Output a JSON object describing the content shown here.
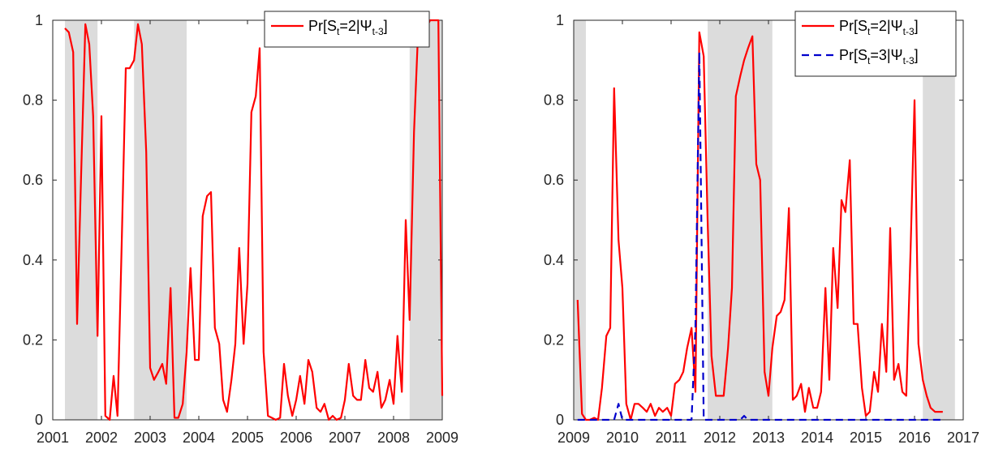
{
  "chart_data": [
    {
      "type": "line",
      "xlim": [
        2001.0,
        2009.0
      ],
      "ylim": [
        0,
        1
      ],
      "xticks": [
        "2001",
        "2002",
        "2003",
        "2004",
        "2005",
        "2006",
        "2007",
        "2008",
        "2009"
      ],
      "yticks": [
        "0",
        "0.2",
        "0.4",
        "0.6",
        "0.8",
        "1"
      ],
      "grid": false,
      "legend_position": "top-right",
      "shaded_periods": [
        [
          2001.25,
          2001.92
        ],
        [
          2002.67,
          2003.75
        ],
        [
          2008.33,
          2009.0
        ]
      ],
      "series": [
        {
          "name": "Pr[S_t=2|Ψ_t-3]",
          "legend": {
            "main": "Pr[S",
            "sub1": "t",
            "mid": "=2|Ψ",
            "sub2": "t-3",
            "end": "]"
          },
          "color": "#ff0000",
          "dash": "solid",
          "x": [
            2001.25,
            2001.33,
            2001.42,
            2001.5,
            2001.58,
            2001.67,
            2001.75,
            2001.83,
            2001.92,
            2002.0,
            2002.08,
            2002.17,
            2002.25,
            2002.33,
            2002.42,
            2002.5,
            2002.58,
            2002.67,
            2002.75,
            2002.83,
            2002.92,
            2003.0,
            2003.08,
            2003.17,
            2003.25,
            2003.33,
            2003.42,
            2003.5,
            2003.58,
            2003.67,
            2003.75,
            2003.83,
            2003.92,
            2004.0,
            2004.08,
            2004.17,
            2004.25,
            2004.33,
            2004.42,
            2004.5,
            2004.58,
            2004.67,
            2004.75,
            2004.83,
            2004.92,
            2005.0,
            2005.08,
            2005.17,
            2005.25,
            2005.33,
            2005.42,
            2005.5,
            2005.58,
            2005.67,
            2005.75,
            2005.83,
            2005.92,
            2006.0,
            2006.08,
            2006.17,
            2006.25,
            2006.33,
            2006.42,
            2006.5,
            2006.58,
            2006.67,
            2006.75,
            2006.83,
            2006.92,
            2007.0,
            2007.08,
            2007.17,
            2007.25,
            2007.33,
            2007.42,
            2007.5,
            2007.58,
            2007.67,
            2007.75,
            2007.83,
            2007.92,
            2008.0,
            2008.08,
            2008.17,
            2008.25,
            2008.33,
            2008.42,
            2008.5,
            2008.58,
            2008.67,
            2008.75,
            2008.83,
            2008.92,
            2009.0
          ],
          "y": [
            0.98,
            0.97,
            0.92,
            0.24,
            0.6,
            0.99,
            0.94,
            0.76,
            0.21,
            0.76,
            0.01,
            0.0,
            0.11,
            0.01,
            0.46,
            0.88,
            0.88,
            0.9,
            0.99,
            0.94,
            0.67,
            0.13,
            0.1,
            0.12,
            0.14,
            0.09,
            0.33,
            0.005,
            0.005,
            0.04,
            0.17,
            0.38,
            0.15,
            0.15,
            0.51,
            0.56,
            0.57,
            0.23,
            0.19,
            0.05,
            0.02,
            0.1,
            0.19,
            0.43,
            0.19,
            0.34,
            0.77,
            0.81,
            0.93,
            0.17,
            0.01,
            0.005,
            0.0,
            0.005,
            0.14,
            0.06,
            0.01,
            0.05,
            0.11,
            0.04,
            0.15,
            0.12,
            0.03,
            0.02,
            0.04,
            0.0,
            0.01,
            0.0,
            0.005,
            0.05,
            0.14,
            0.06,
            0.05,
            0.05,
            0.15,
            0.08,
            0.07,
            0.12,
            0.03,
            0.05,
            0.1,
            0.04,
            0.21,
            0.07,
            0.5,
            0.25,
            0.72,
            0.96,
            0.99,
            0.98,
            1.0,
            1.0,
            1.0,
            0.06
          ]
        }
      ]
    },
    {
      "type": "line",
      "xlim": [
        2009.0,
        2017.0
      ],
      "ylim": [
        0,
        1
      ],
      "xticks": [
        "2009",
        "2010",
        "2011",
        "2012",
        "2013",
        "2014",
        "2015",
        "2016",
        "2017"
      ],
      "yticks": [
        "0",
        "0.2",
        "0.4",
        "0.6",
        "0.8",
        "1"
      ],
      "grid": false,
      "legend_position": "top-right",
      "shaded_periods": [
        [
          2009.0,
          2009.25
        ],
        [
          2011.75,
          2013.08
        ],
        [
          2016.17,
          2016.83
        ]
      ],
      "series": [
        {
          "name": "Pr[S_t=2|Ψ_t-3]",
          "legend": {
            "main": "Pr[S",
            "sub1": "t",
            "mid": "=2|Ψ",
            "sub2": "t-3",
            "end": "]"
          },
          "color": "#ff0000",
          "dash": "solid",
          "x": [
            2009.08,
            2009.17,
            2009.25,
            2009.33,
            2009.42,
            2009.5,
            2009.58,
            2009.67,
            2009.75,
            2009.83,
            2009.92,
            2010.0,
            2010.08,
            2010.17,
            2010.25,
            2010.33,
            2010.42,
            2010.5,
            2010.58,
            2010.67,
            2010.75,
            2010.83,
            2010.92,
            2011.0,
            2011.08,
            2011.17,
            2011.25,
            2011.33,
            2011.42,
            2011.5,
            2011.58,
            2011.67,
            2011.75,
            2011.83,
            2011.92,
            2012.0,
            2012.08,
            2012.17,
            2012.25,
            2012.33,
            2012.42,
            2012.5,
            2012.58,
            2012.67,
            2012.75,
            2012.83,
            2012.92,
            2013.0,
            2013.08,
            2013.17,
            2013.25,
            2013.33,
            2013.42,
            2013.5,
            2013.58,
            2013.67,
            2013.75,
            2013.83,
            2013.92,
            2014.0,
            2014.08,
            2014.17,
            2014.25,
            2014.33,
            2014.42,
            2014.5,
            2014.58,
            2014.67,
            2014.75,
            2014.83,
            2014.92,
            2015.0,
            2015.08,
            2015.17,
            2015.25,
            2015.33,
            2015.42,
            2015.5,
            2015.58,
            2015.67,
            2015.75,
            2015.83,
            2015.92,
            2016.0,
            2016.08,
            2016.17,
            2016.25,
            2016.33,
            2016.42,
            2016.5,
            2016.58
          ],
          "y": [
            0.3,
            0.015,
            0.0,
            0.0,
            0.005,
            0.0,
            0.08,
            0.21,
            0.23,
            0.83,
            0.45,
            0.33,
            0.04,
            0.0,
            0.04,
            0.04,
            0.03,
            0.02,
            0.04,
            0.01,
            0.03,
            0.02,
            0.03,
            0.01,
            0.09,
            0.1,
            0.12,
            0.18,
            0.23,
            0.07,
            0.97,
            0.91,
            0.5,
            0.16,
            0.06,
            0.06,
            0.06,
            0.18,
            0.33,
            0.81,
            0.86,
            0.9,
            0.93,
            0.96,
            0.64,
            0.6,
            0.12,
            0.06,
            0.18,
            0.26,
            0.27,
            0.3,
            0.53,
            0.05,
            0.06,
            0.09,
            0.02,
            0.08,
            0.03,
            0.03,
            0.07,
            0.33,
            0.1,
            0.43,
            0.28,
            0.55,
            0.52,
            0.65,
            0.24,
            0.24,
            0.08,
            0.01,
            0.02,
            0.12,
            0.07,
            0.24,
            0.12,
            0.48,
            0.1,
            0.14,
            0.07,
            0.06,
            0.43,
            0.8,
            0.19,
            0.1,
            0.06,
            0.03,
            0.02,
            0.02,
            0.02
          ]
        },
        {
          "name": "Pr[S_t=3|Ψ_t-3]",
          "legend": {
            "main": "Pr[S",
            "sub1": "t",
            "mid": "=3|Ψ",
            "sub2": "t-3",
            "end": "]"
          },
          "color": "#0000cc",
          "dash": "dashed",
          "x": [
            2009.08,
            2009.5,
            2009.83,
            2009.92,
            2010.0,
            2010.5,
            2011.0,
            2011.42,
            2011.5,
            2011.58,
            2011.67,
            2011.75,
            2011.83,
            2012.0,
            2012.42,
            2012.5,
            2012.58,
            2013.0,
            2014.0,
            2015.0,
            2016.0,
            2016.58
          ],
          "y": [
            0.0,
            0.0,
            0.0,
            0.04,
            0.0,
            0.0,
            0.0,
            0.0,
            0.23,
            0.92,
            0.0,
            0.0,
            0.0,
            0.0,
            0.0,
            0.01,
            0.0,
            0.0,
            0.0,
            0.0,
            0.0,
            0.0
          ]
        }
      ]
    }
  ]
}
